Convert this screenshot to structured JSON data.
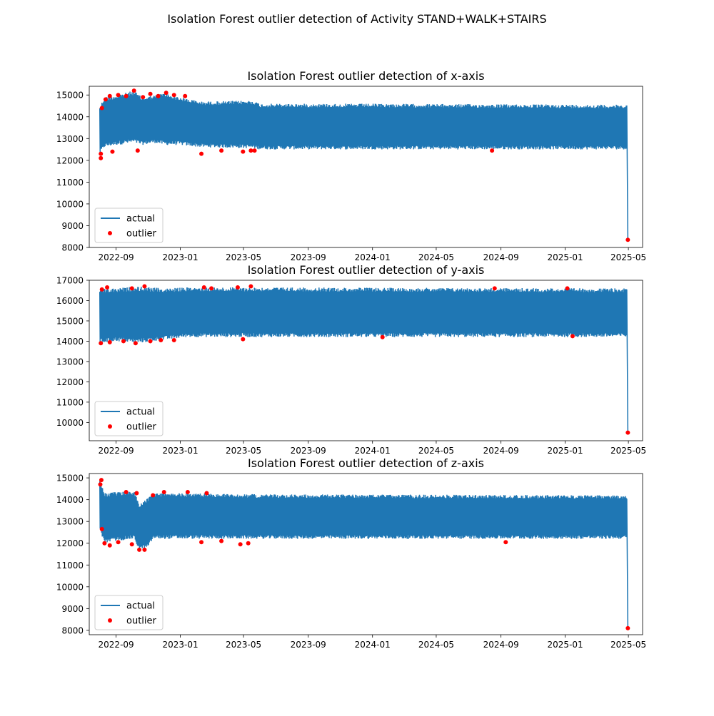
{
  "suptitle": "Isolation Forest outlier detection of Activity STAND+WALK+STAIRS",
  "colors": {
    "actual": "#1f77b4",
    "outlier": "#ff0000"
  },
  "chart_data": [
    {
      "type": "line",
      "title": "Isolation Forest outlier detection of x-axis",
      "xlabel": "",
      "ylabel": "",
      "xlim": [
        "2022-07-12",
        "2025-05-28"
      ],
      "ylim": [
        8000,
        15400
      ],
      "xticks": [
        "2022-09",
        "2023-01",
        "2023-05",
        "2023-09",
        "2024-01",
        "2024-05",
        "2024-09",
        "2025-01",
        "2025-05"
      ],
      "yticks": [
        8000,
        9000,
        10000,
        11000,
        12000,
        13000,
        14000,
        15000
      ],
      "legend": {
        "position": "lower-left",
        "entries": [
          "actual",
          "outlier"
        ]
      },
      "grid": false,
      "series": [
        {
          "name": "actual",
          "mark": "line",
          "envelope": [
            {
              "date": "2022-08-01",
              "low": 12300,
              "high": 14500
            },
            {
              "date": "2022-08-10",
              "low": 12600,
              "high": 14900
            },
            {
              "date": "2022-09-01",
              "low": 12700,
              "high": 15000
            },
            {
              "date": "2022-10-05",
              "low": 12800,
              "high": 15200
            },
            {
              "date": "2022-10-20",
              "low": 12700,
              "high": 14900
            },
            {
              "date": "2022-11-15",
              "low": 12800,
              "high": 15000
            },
            {
              "date": "2022-12-01",
              "low": 12700,
              "high": 15100
            },
            {
              "date": "2023-01-01",
              "low": 12700,
              "high": 14900
            },
            {
              "date": "2023-02-10",
              "low": 12600,
              "high": 14700
            },
            {
              "date": "2023-05-20",
              "low": 12550,
              "high": 14750
            },
            {
              "date": "2023-06-01",
              "low": 12500,
              "high": 14600
            },
            {
              "date": "2024-01-01",
              "low": 12500,
              "high": 14600
            },
            {
              "date": "2025-04-28",
              "low": 12500,
              "high": 14550
            },
            {
              "date": "2025-04-30",
              "low": 8350,
              "high": 8350
            }
          ]
        },
        {
          "name": "outlier",
          "mark": "scatter",
          "points": [
            {
              "date": "2022-08-03",
              "y": 12100
            },
            {
              "date": "2022-08-03",
              "y": 12300
            },
            {
              "date": "2022-08-05",
              "y": 14400
            },
            {
              "date": "2022-08-12",
              "y": 14800
            },
            {
              "date": "2022-08-20",
              "y": 14950
            },
            {
              "date": "2022-08-25",
              "y": 12400
            },
            {
              "date": "2022-09-05",
              "y": 15000
            },
            {
              "date": "2022-09-20",
              "y": 14950
            },
            {
              "date": "2022-10-05",
              "y": 15200
            },
            {
              "date": "2022-10-12",
              "y": 12450
            },
            {
              "date": "2022-10-22",
              "y": 14900
            },
            {
              "date": "2022-11-05",
              "y": 15050
            },
            {
              "date": "2022-11-20",
              "y": 14950
            },
            {
              "date": "2022-12-05",
              "y": 15100
            },
            {
              "date": "2022-12-20",
              "y": 15000
            },
            {
              "date": "2023-01-10",
              "y": 14950
            },
            {
              "date": "2023-02-10",
              "y": 12300
            },
            {
              "date": "2023-03-20",
              "y": 12450
            },
            {
              "date": "2023-04-30",
              "y": 12400
            },
            {
              "date": "2023-05-15",
              "y": 12450
            },
            {
              "date": "2023-05-22",
              "y": 12450
            },
            {
              "date": "2024-08-15",
              "y": 12450
            },
            {
              "date": "2025-04-30",
              "y": 8350
            }
          ]
        }
      ]
    },
    {
      "type": "line",
      "title": "Isolation Forest outlier detection of y-axis",
      "xlabel": "",
      "ylabel": "",
      "xlim": [
        "2022-07-12",
        "2025-05-28"
      ],
      "ylim": [
        9100,
        17000
      ],
      "xticks": [
        "2022-09",
        "2023-01",
        "2023-05",
        "2023-09",
        "2024-01",
        "2024-05",
        "2024-09",
        "2025-01",
        "2025-05"
      ],
      "yticks": [
        10000,
        11000,
        12000,
        13000,
        14000,
        15000,
        16000,
        17000
      ],
      "legend": {
        "position": "lower-left",
        "entries": [
          "actual",
          "outlier"
        ]
      },
      "grid": false,
      "series": [
        {
          "name": "actual",
          "mark": "line",
          "envelope": [
            {
              "date": "2022-08-01",
              "low": 13900,
              "high": 16600
            },
            {
              "date": "2022-09-01",
              "low": 14000,
              "high": 16600
            },
            {
              "date": "2022-10-10",
              "low": 13900,
              "high": 16700
            },
            {
              "date": "2022-12-01",
              "low": 14050,
              "high": 16600
            },
            {
              "date": "2023-01-15",
              "low": 14200,
              "high": 16650
            },
            {
              "date": "2023-06-01",
              "low": 14200,
              "high": 16650
            },
            {
              "date": "2025-04-28",
              "low": 14200,
              "high": 16600
            },
            {
              "date": "2025-04-30",
              "low": 9500,
              "high": 9500
            }
          ]
        },
        {
          "name": "outlier",
          "mark": "scatter",
          "points": [
            {
              "date": "2022-08-03",
              "y": 13900
            },
            {
              "date": "2022-08-05",
              "y": 16550
            },
            {
              "date": "2022-08-15",
              "y": 16650
            },
            {
              "date": "2022-08-20",
              "y": 13950
            },
            {
              "date": "2022-09-15",
              "y": 14000
            },
            {
              "date": "2022-10-01",
              "y": 16600
            },
            {
              "date": "2022-10-08",
              "y": 13900
            },
            {
              "date": "2022-10-25",
              "y": 16700
            },
            {
              "date": "2022-11-05",
              "y": 14000
            },
            {
              "date": "2022-11-25",
              "y": 14050
            },
            {
              "date": "2022-12-20",
              "y": 14050
            },
            {
              "date": "2023-02-15",
              "y": 16650
            },
            {
              "date": "2023-03-01",
              "y": 16600
            },
            {
              "date": "2023-04-20",
              "y": 16650
            },
            {
              "date": "2023-04-30",
              "y": 14100
            },
            {
              "date": "2023-05-15",
              "y": 16700
            },
            {
              "date": "2024-01-20",
              "y": 14200
            },
            {
              "date": "2024-08-20",
              "y": 16600
            },
            {
              "date": "2025-01-05",
              "y": 16600
            },
            {
              "date": "2025-01-15",
              "y": 14250
            },
            {
              "date": "2025-04-30",
              "y": 9500
            }
          ]
        }
      ]
    },
    {
      "type": "line",
      "title": "Isolation Forest outlier detection of z-axis",
      "xlabel": "",
      "ylabel": "",
      "xlim": [
        "2022-07-12",
        "2025-05-28"
      ],
      "ylim": [
        7800,
        15200
      ],
      "xticks": [
        "2022-09",
        "2023-01",
        "2023-05",
        "2023-09",
        "2024-01",
        "2024-05",
        "2024-09",
        "2025-01",
        "2025-05"
      ],
      "yticks": [
        8000,
        9000,
        10000,
        11000,
        12000,
        13000,
        14000,
        15000
      ],
      "legend": {
        "position": "lower-left",
        "entries": [
          "actual",
          "outlier"
        ]
      },
      "grid": false,
      "series": [
        {
          "name": "actual",
          "mark": "line",
          "envelope": [
            {
              "date": "2022-08-01",
              "low": 12600,
              "high": 14900
            },
            {
              "date": "2022-08-10",
              "low": 12000,
              "high": 14300
            },
            {
              "date": "2022-09-01",
              "low": 12100,
              "high": 14350
            },
            {
              "date": "2022-10-05",
              "low": 12200,
              "high": 14400
            },
            {
              "date": "2022-10-15",
              "low": 11700,
              "high": 13800
            },
            {
              "date": "2022-11-01",
              "low": 11800,
              "high": 14100
            },
            {
              "date": "2022-11-10",
              "low": 12200,
              "high": 14300
            },
            {
              "date": "2023-01-01",
              "low": 12200,
              "high": 14300
            },
            {
              "date": "2023-06-01",
              "low": 12200,
              "high": 14250
            },
            {
              "date": "2025-04-28",
              "low": 12200,
              "high": 14200
            },
            {
              "date": "2025-04-30",
              "low": 8100,
              "high": 8100
            }
          ]
        },
        {
          "name": "outlier",
          "mark": "scatter",
          "points": [
            {
              "date": "2022-08-02",
              "y": 14700
            },
            {
              "date": "2022-08-04",
              "y": 14900
            },
            {
              "date": "2022-08-05",
              "y": 12650
            },
            {
              "date": "2022-08-10",
              "y": 12000
            },
            {
              "date": "2022-08-20",
              "y": 11900
            },
            {
              "date": "2022-09-05",
              "y": 12050
            },
            {
              "date": "2022-09-20",
              "y": 14350
            },
            {
              "date": "2022-10-01",
              "y": 11950
            },
            {
              "date": "2022-10-10",
              "y": 14300
            },
            {
              "date": "2022-10-15",
              "y": 11700
            },
            {
              "date": "2022-10-25",
              "y": 11700
            },
            {
              "date": "2022-11-10",
              "y": 14200
            },
            {
              "date": "2022-12-01",
              "y": 14350
            },
            {
              "date": "2023-01-15",
              "y": 14350
            },
            {
              "date": "2023-02-10",
              "y": 12050
            },
            {
              "date": "2023-02-20",
              "y": 14300
            },
            {
              "date": "2023-03-20",
              "y": 12100
            },
            {
              "date": "2023-04-25",
              "y": 11950
            },
            {
              "date": "2023-05-10",
              "y": 12000
            },
            {
              "date": "2024-09-10",
              "y": 12050
            },
            {
              "date": "2025-04-30",
              "y": 8100
            }
          ]
        }
      ]
    }
  ]
}
